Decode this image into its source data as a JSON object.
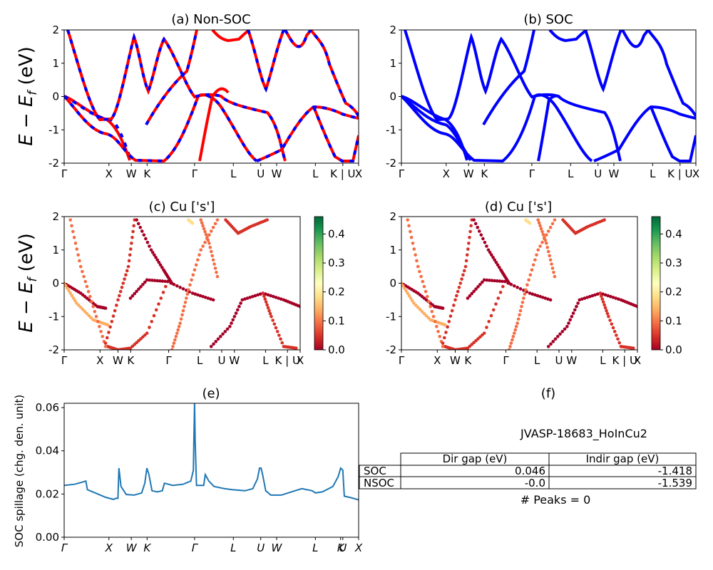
{
  "panels": {
    "a": {
      "title": "(a) Non-SOC"
    },
    "b": {
      "title": "(b) SOC"
    },
    "c": {
      "title": "(c)  Cu ['s']"
    },
    "d": {
      "title": "(d) Cu ['s']"
    },
    "e": {
      "title": "(e)"
    },
    "f": {
      "title": "(f)"
    }
  },
  "band_ylabel": "E − E_f (eV)",
  "spill_ylabel": "SOC spillage (chg. den. unit)",
  "band_ticks": {
    "labels": [
      "Γ",
      "X",
      "W",
      "K",
      "Γ",
      "L",
      "U",
      "W",
      "L",
      "K | U",
      "X"
    ],
    "positions": [
      0,
      0.866,
      1.299,
      1.605,
      2.523,
      3.274,
      3.804,
      4.111,
      4.861,
      5.392,
      5.698
    ]
  },
  "spill_ticks": {
    "labels": [
      "Γ",
      "X",
      "W",
      "K",
      "Γ",
      "L",
      "U",
      "W",
      "L",
      "K",
      "U",
      "X"
    ],
    "positions": [
      0,
      0.866,
      1.299,
      1.605,
      2.523,
      3.274,
      3.804,
      4.111,
      4.861,
      5.35,
      5.392,
      5.698
    ]
  },
  "colorbar": {
    "ticks": [
      "0.0",
      "0.1",
      "0.2",
      "0.3",
      "0.4"
    ],
    "max": 0.46,
    "colormap": "RdYlGn"
  },
  "colors": {
    "nonsoc_red": "#ff0000",
    "nonsoc_blue": "#0000ff",
    "soc_blue": "#0000ff",
    "spill_line": "#1f77b4"
  },
  "info": {
    "material": "JVASP-18683_HoInCu2",
    "table": {
      "headers": [
        "",
        "Dir gap (eV)",
        "Indir gap (eV)"
      ],
      "rows": [
        {
          "label": "SOC",
          "dir": "0.046",
          "indir": "-1.418"
        },
        {
          "label": "NSOC",
          "dir": "-0.0",
          "indir": "-1.539"
        }
      ]
    },
    "peaks": "# Peaks = 0"
  },
  "chart_data": [
    {
      "type": "line",
      "title": "(a) Non-SOC",
      "ylim": [
        -2,
        2
      ],
      "yticks": [
        -2,
        -1,
        0,
        1,
        2
      ],
      "xlim": [
        0,
        5.698
      ]
    },
    {
      "type": "line",
      "title": "(b) SOC",
      "ylim": [
        -2,
        2
      ],
      "yticks": [
        -2,
        -1,
        0,
        1,
        2
      ],
      "xlim": [
        0,
        5.698
      ]
    },
    {
      "type": "scatter",
      "title": "(c)  Cu ['s']",
      "ylim": [
        -2,
        2
      ],
      "yticks": [
        -2,
        -1,
        0,
        1,
        2
      ]
    },
    {
      "type": "scatter",
      "title": "(d) Cu ['s']",
      "ylim": [
        -2,
        2
      ],
      "yticks": [
        -2,
        -1,
        0,
        1,
        2
      ]
    },
    {
      "type": "line",
      "title": "(e)",
      "ylabel": "SOC spillage (chg. den. unit)",
      "ylim": [
        0,
        0.062
      ],
      "yticks": [
        "0.00",
        "0.02",
        "0.04",
        "0.06"
      ],
      "xlim": [
        0,
        5.698
      ],
      "x": [
        0,
        0.2,
        0.35,
        0.42,
        0.45,
        0.6,
        0.8,
        0.95,
        1.0,
        1.04,
        1.06,
        1.1,
        1.2,
        1.35,
        1.5,
        1.56,
        1.6,
        1.64,
        1.7,
        1.8,
        1.9,
        1.94,
        2.1,
        2.3,
        2.45,
        2.5,
        2.51,
        2.523,
        2.535,
        2.56,
        2.7,
        2.73,
        2.8,
        2.9,
        3.1,
        3.25,
        3.5,
        3.65,
        3.74,
        3.78,
        3.81,
        3.84,
        3.9,
        4.0,
        4.2,
        4.4,
        4.6,
        4.8,
        4.86,
        5.0,
        5.2,
        5.3,
        5.35,
        5.392,
        5.42,
        5.55,
        5.698
      ],
      "y": [
        0.024,
        0.0245,
        0.0255,
        0.026,
        0.022,
        0.0205,
        0.0185,
        0.0175,
        0.018,
        0.018,
        0.032,
        0.0235,
        0.0198,
        0.0195,
        0.0205,
        0.025,
        0.032,
        0.029,
        0.0215,
        0.021,
        0.0215,
        0.025,
        0.024,
        0.0245,
        0.026,
        0.031,
        0.045,
        0.0625,
        0.045,
        0.024,
        0.024,
        0.029,
        0.026,
        0.0235,
        0.0225,
        0.022,
        0.0215,
        0.0225,
        0.027,
        0.032,
        0.032,
        0.029,
        0.0215,
        0.0195,
        0.0195,
        0.021,
        0.0225,
        0.0215,
        0.0205,
        0.021,
        0.0235,
        0.028,
        0.032,
        0.031,
        0.019,
        0.0183,
        0.0173
      ]
    }
  ]
}
